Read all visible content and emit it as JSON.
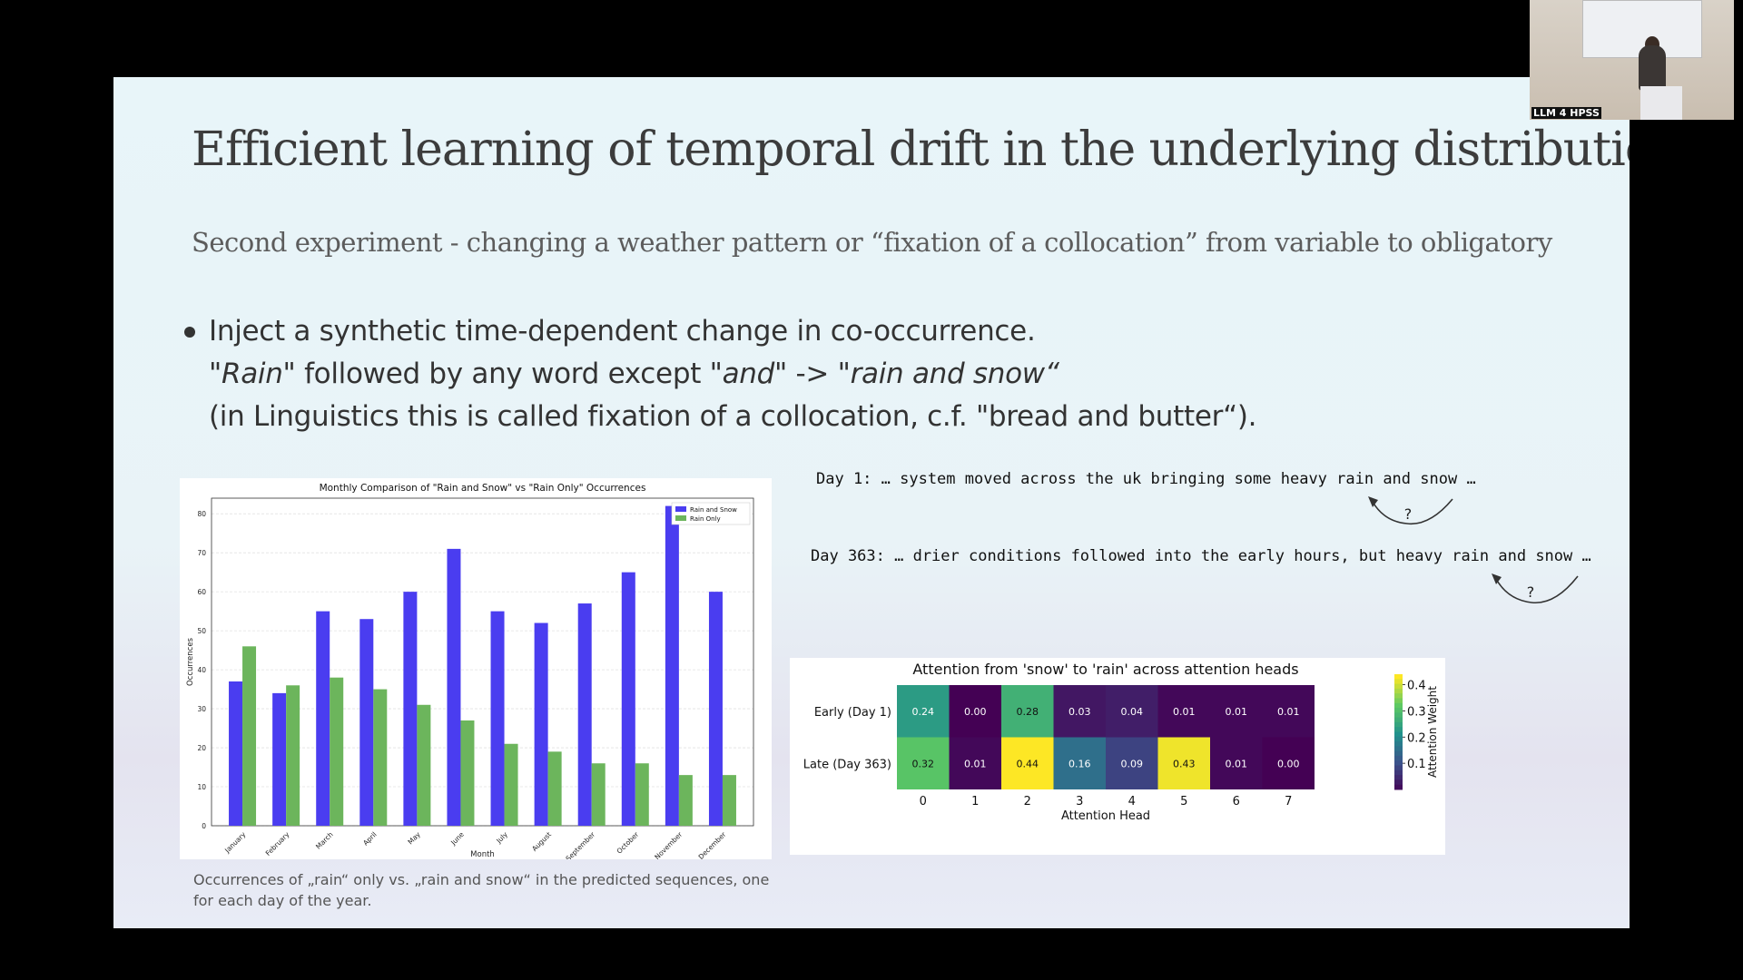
{
  "slide": {
    "title": "Efficient learning of temporal drift in the underlying distribution?",
    "subtitle": "Second experiment - changing a weather pattern or “fixation of a collocation” from variable to obligatory",
    "bullet": {
      "line1": "Inject a synthetic time-dependent change in co-occurrence.",
      "line2_q1": "\"Rain\"",
      "line2_mid": " followed by any word except ",
      "line2_q2": "\"and\"",
      "line2_arrow": " -> ",
      "line2_q3": "\"rain and snow“",
      "line3": "(in Linguistics this is called fixation of a collocation, c.f. \"bread and butter“)."
    },
    "caption": "Occurrences of „rain“ only vs. „rain and snow“ in the predicted sequences, one for each day of the year.",
    "examples": [
      {
        "text": "Day 1: … system moved across the uk bringing some heavy rain and snow …",
        "mark": "?"
      },
      {
        "text": "Day 363: … drier conditions followed into the early hours, but heavy rain and snow …",
        "mark": "?"
      }
    ]
  },
  "webcam": {
    "tag": "LLM 4 HPSS"
  },
  "chart_data": [
    {
      "type": "bar",
      "title": "Monthly Comparison of \"Rain and Snow\" vs \"Rain Only\" Occurrences",
      "xlabel": "Month",
      "ylabel": "Occurrences",
      "ylim": [
        0,
        84
      ],
      "yticks": [
        0,
        10,
        20,
        30,
        40,
        50,
        60,
        70,
        80
      ],
      "categories": [
        "January",
        "February",
        "March",
        "April",
        "May",
        "June",
        "July",
        "August",
        "September",
        "October",
        "November",
        "December"
      ],
      "series": [
        {
          "name": "Rain and Snow",
          "color": "#4a3df0",
          "values": [
            37,
            34,
            55,
            53,
            60,
            71,
            55,
            52,
            57,
            65,
            82,
            60
          ]
        },
        {
          "name": "Rain Only",
          "color": "#6cb55c",
          "values": [
            46,
            36,
            38,
            35,
            31,
            27,
            21,
            19,
            16,
            16,
            13,
            13
          ]
        }
      ],
      "legend": "top-right",
      "grid": true
    },
    {
      "type": "heatmap",
      "title": "Attention from 'snow' to 'rain' across attention heads",
      "xlabel": "Attention Head",
      "x": [
        "0",
        "1",
        "2",
        "3",
        "4",
        "5",
        "6",
        "7"
      ],
      "y": [
        "Early (Day 1)",
        "Late (Day 363)"
      ],
      "values": [
        [
          0.24,
          0.0,
          0.28,
          0.03,
          0.04,
          0.01,
          0.01,
          0.01
        ],
        [
          0.32,
          0.01,
          0.44,
          0.16,
          0.09,
          0.43,
          0.01,
          0.0
        ]
      ],
      "colorbar_label": "Attention Weight",
      "colorbar_ticks": [
        "0.1",
        "0.2",
        "0.3",
        "0.4"
      ],
      "colormap": "viridis",
      "vmin": 0.0,
      "vmax": 0.44
    }
  ]
}
